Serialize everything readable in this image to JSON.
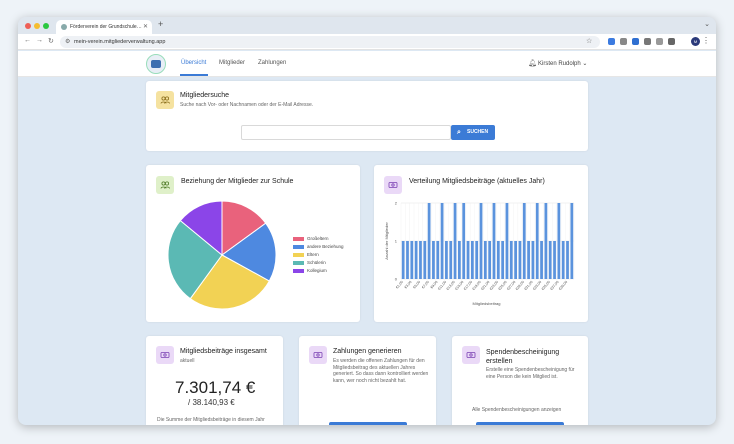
{
  "browser": {
    "tab_title": "Förderverein der Grundschule…",
    "url": "mein-verein.mitgliederverwaltung.app"
  },
  "nav": {
    "links": [
      "Übersicht",
      "Mitglieder",
      "Zahlungen"
    ],
    "user": "Kirsten Rudolph"
  },
  "search": {
    "title": "Mitgliedersuche",
    "subtitle": "Suche nach Vor- oder Nachnamen oder der E-Mail Adresse.",
    "input_value": "",
    "button_label": "SUCHEN"
  },
  "relation": {
    "title": "Beziehung der Mitglieder zur Schule",
    "chart_data": {
      "type": "pie",
      "labels": [
        "Großeltern",
        "andere Beziehung",
        "Eltern",
        "Schülerin",
        "Kollegium"
      ],
      "values": [
        15,
        18,
        27,
        26,
        14
      ],
      "colors": [
        "#e9627c",
        "#4e89e0",
        "#f2d254",
        "#5bb9b4",
        "#8b45e8"
      ]
    }
  },
  "distribution": {
    "title": "Verteilung Mitgliedsbeiträge (aktuelles Jahr)",
    "chart_data": {
      "type": "bar",
      "ylabel": "Anzahl der Mitglieder",
      "xlabel": "Mitgliedsbeitrag",
      "ylim": [
        0,
        2
      ],
      "yticks": [
        "0",
        "1",
        "2"
      ],
      "categories": [
        "€1,00",
        "€2,00",
        "€3,00",
        "€4,00",
        "€5,00",
        "€6,00",
        "€7,00",
        "€8,00",
        "€9,00",
        "€10,00",
        "€11,00",
        "€12,00",
        "€13,00",
        "€14,00",
        "€15,00",
        "€16,00",
        "€17,00",
        "€18,00",
        "€19,00",
        "€20,00",
        "€21,00",
        "€22,00",
        "€23,00",
        "€24,00",
        "€25,00",
        "€26,00",
        "€27,00",
        "€28,00",
        "€29,00",
        "€30,00",
        "€31,00",
        "€32,00",
        "€33,00",
        "€34,00",
        "€35,00",
        "€36,00",
        "€37,00",
        "€38,00",
        "€39,00",
        "€40,00"
      ],
      "x_tick_labels": [
        "€1,00",
        "€3,00",
        "€5,00",
        "€7,00",
        "€9,00",
        "€11,00",
        "€13,00",
        "€15,00",
        "€17,00",
        "€19,00",
        "€21,00",
        "€23,00",
        "€25,00",
        "€27,00",
        "€29,00",
        "€31,00",
        "€33,00",
        "€35,00",
        "€37,00",
        "€39,00"
      ],
      "values": [
        1,
        1,
        1,
        1,
        1,
        1,
        2,
        1,
        1,
        2,
        1,
        1,
        2,
        1,
        2,
        1,
        1,
        1,
        2,
        1,
        1,
        2,
        1,
        1,
        2,
        1,
        1,
        1,
        2,
        1,
        1,
        2,
        1,
        2,
        1,
        1,
        2,
        1,
        1,
        2
      ],
      "color": "#5b93dd"
    }
  },
  "total": {
    "title": "Mitgliedsbeiträge insgesamt",
    "subtitle": "aktuell",
    "amount": "7.301,74 €",
    "target": "/ 38.140,93 €",
    "note": "Die Summe der Mitgliedsbeiträge in diesem Jahr"
  },
  "payments": {
    "title": "Zahlungen generieren",
    "text": "Es werden die offenen Zahlungen für den Mitgliedsbeitrag des aktuellen Jahres generiert. So dass dann kontrolliert werden kann, wer noch nicht bezahlt hat."
  },
  "donation": {
    "title": "Spendenbescheinigung erstellen",
    "text": "Erstelle eine Spendenbescheinigung für eine Person die kein Mitglied ist.",
    "link": "Alle Spendenbescheinigungen anzeigen"
  }
}
